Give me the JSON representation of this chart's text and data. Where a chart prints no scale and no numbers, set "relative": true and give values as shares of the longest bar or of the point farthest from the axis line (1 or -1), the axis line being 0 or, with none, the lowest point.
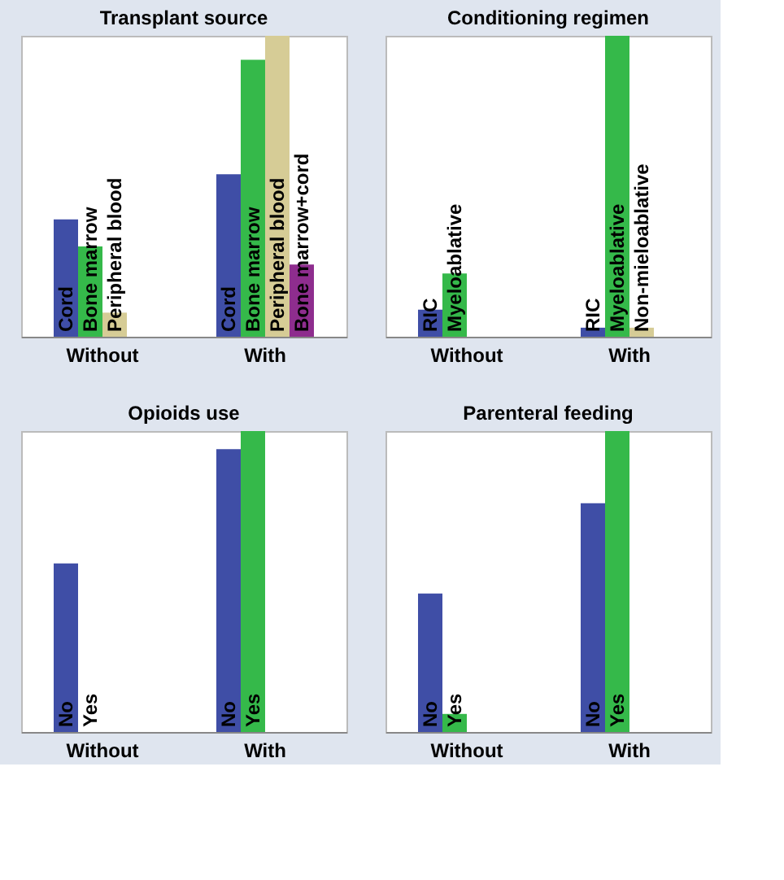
{
  "chart_data": [
    {
      "type": "bar",
      "title": "Transplant source",
      "relative": true,
      "categories": [
        "Without",
        "With"
      ],
      "series": [
        {
          "name": "Cord",
          "color": "#3f4ea6",
          "values": [
            0.39,
            0.54
          ]
        },
        {
          "name": "Bone marrow",
          "color": "#35b94a",
          "values": [
            0.3,
            0.92
          ]
        },
        {
          "name": "Peripheral blood",
          "color": "#d6cc96",
          "values": [
            0.08,
            1
          ]
        },
        {
          "name": "Bone marrow+cord",
          "color": "#8e2d8e",
          "values": [
            null,
            0.24
          ]
        }
      ]
    },
    {
      "type": "bar",
      "title": "Conditioning regimen",
      "relative": true,
      "categories": [
        "Without",
        "With"
      ],
      "series": [
        {
          "name": "RIC",
          "color": "#3f4ea6",
          "values": [
            0.09,
            0.03
          ]
        },
        {
          "name": "Myeloablative",
          "color": "#35b94a",
          "values": [
            0.21,
            1
          ]
        },
        {
          "name": "Non-mieloablative",
          "color": "#d6cc96",
          "values": [
            null,
            0.03
          ]
        }
      ]
    },
    {
      "type": "bar",
      "title": "Opioids use",
      "relative": true,
      "categories": [
        "Without",
        "With"
      ],
      "series": [
        {
          "name": "No",
          "color": "#3f4ea6",
          "values": [
            0.56,
            0.94
          ]
        },
        {
          "name": "Yes",
          "color": "#35b94a",
          "values": [
            0,
            1
          ]
        }
      ]
    },
    {
      "type": "bar",
      "title": "Parenteral feeding",
      "relative": true,
      "categories": [
        "Without",
        "With"
      ],
      "series": [
        {
          "name": "No",
          "color": "#3f4ea6",
          "values": [
            0.46,
            0.76
          ]
        },
        {
          "name": "Yes",
          "color": "#35b94a",
          "values": [
            0.06,
            1
          ]
        }
      ]
    }
  ]
}
